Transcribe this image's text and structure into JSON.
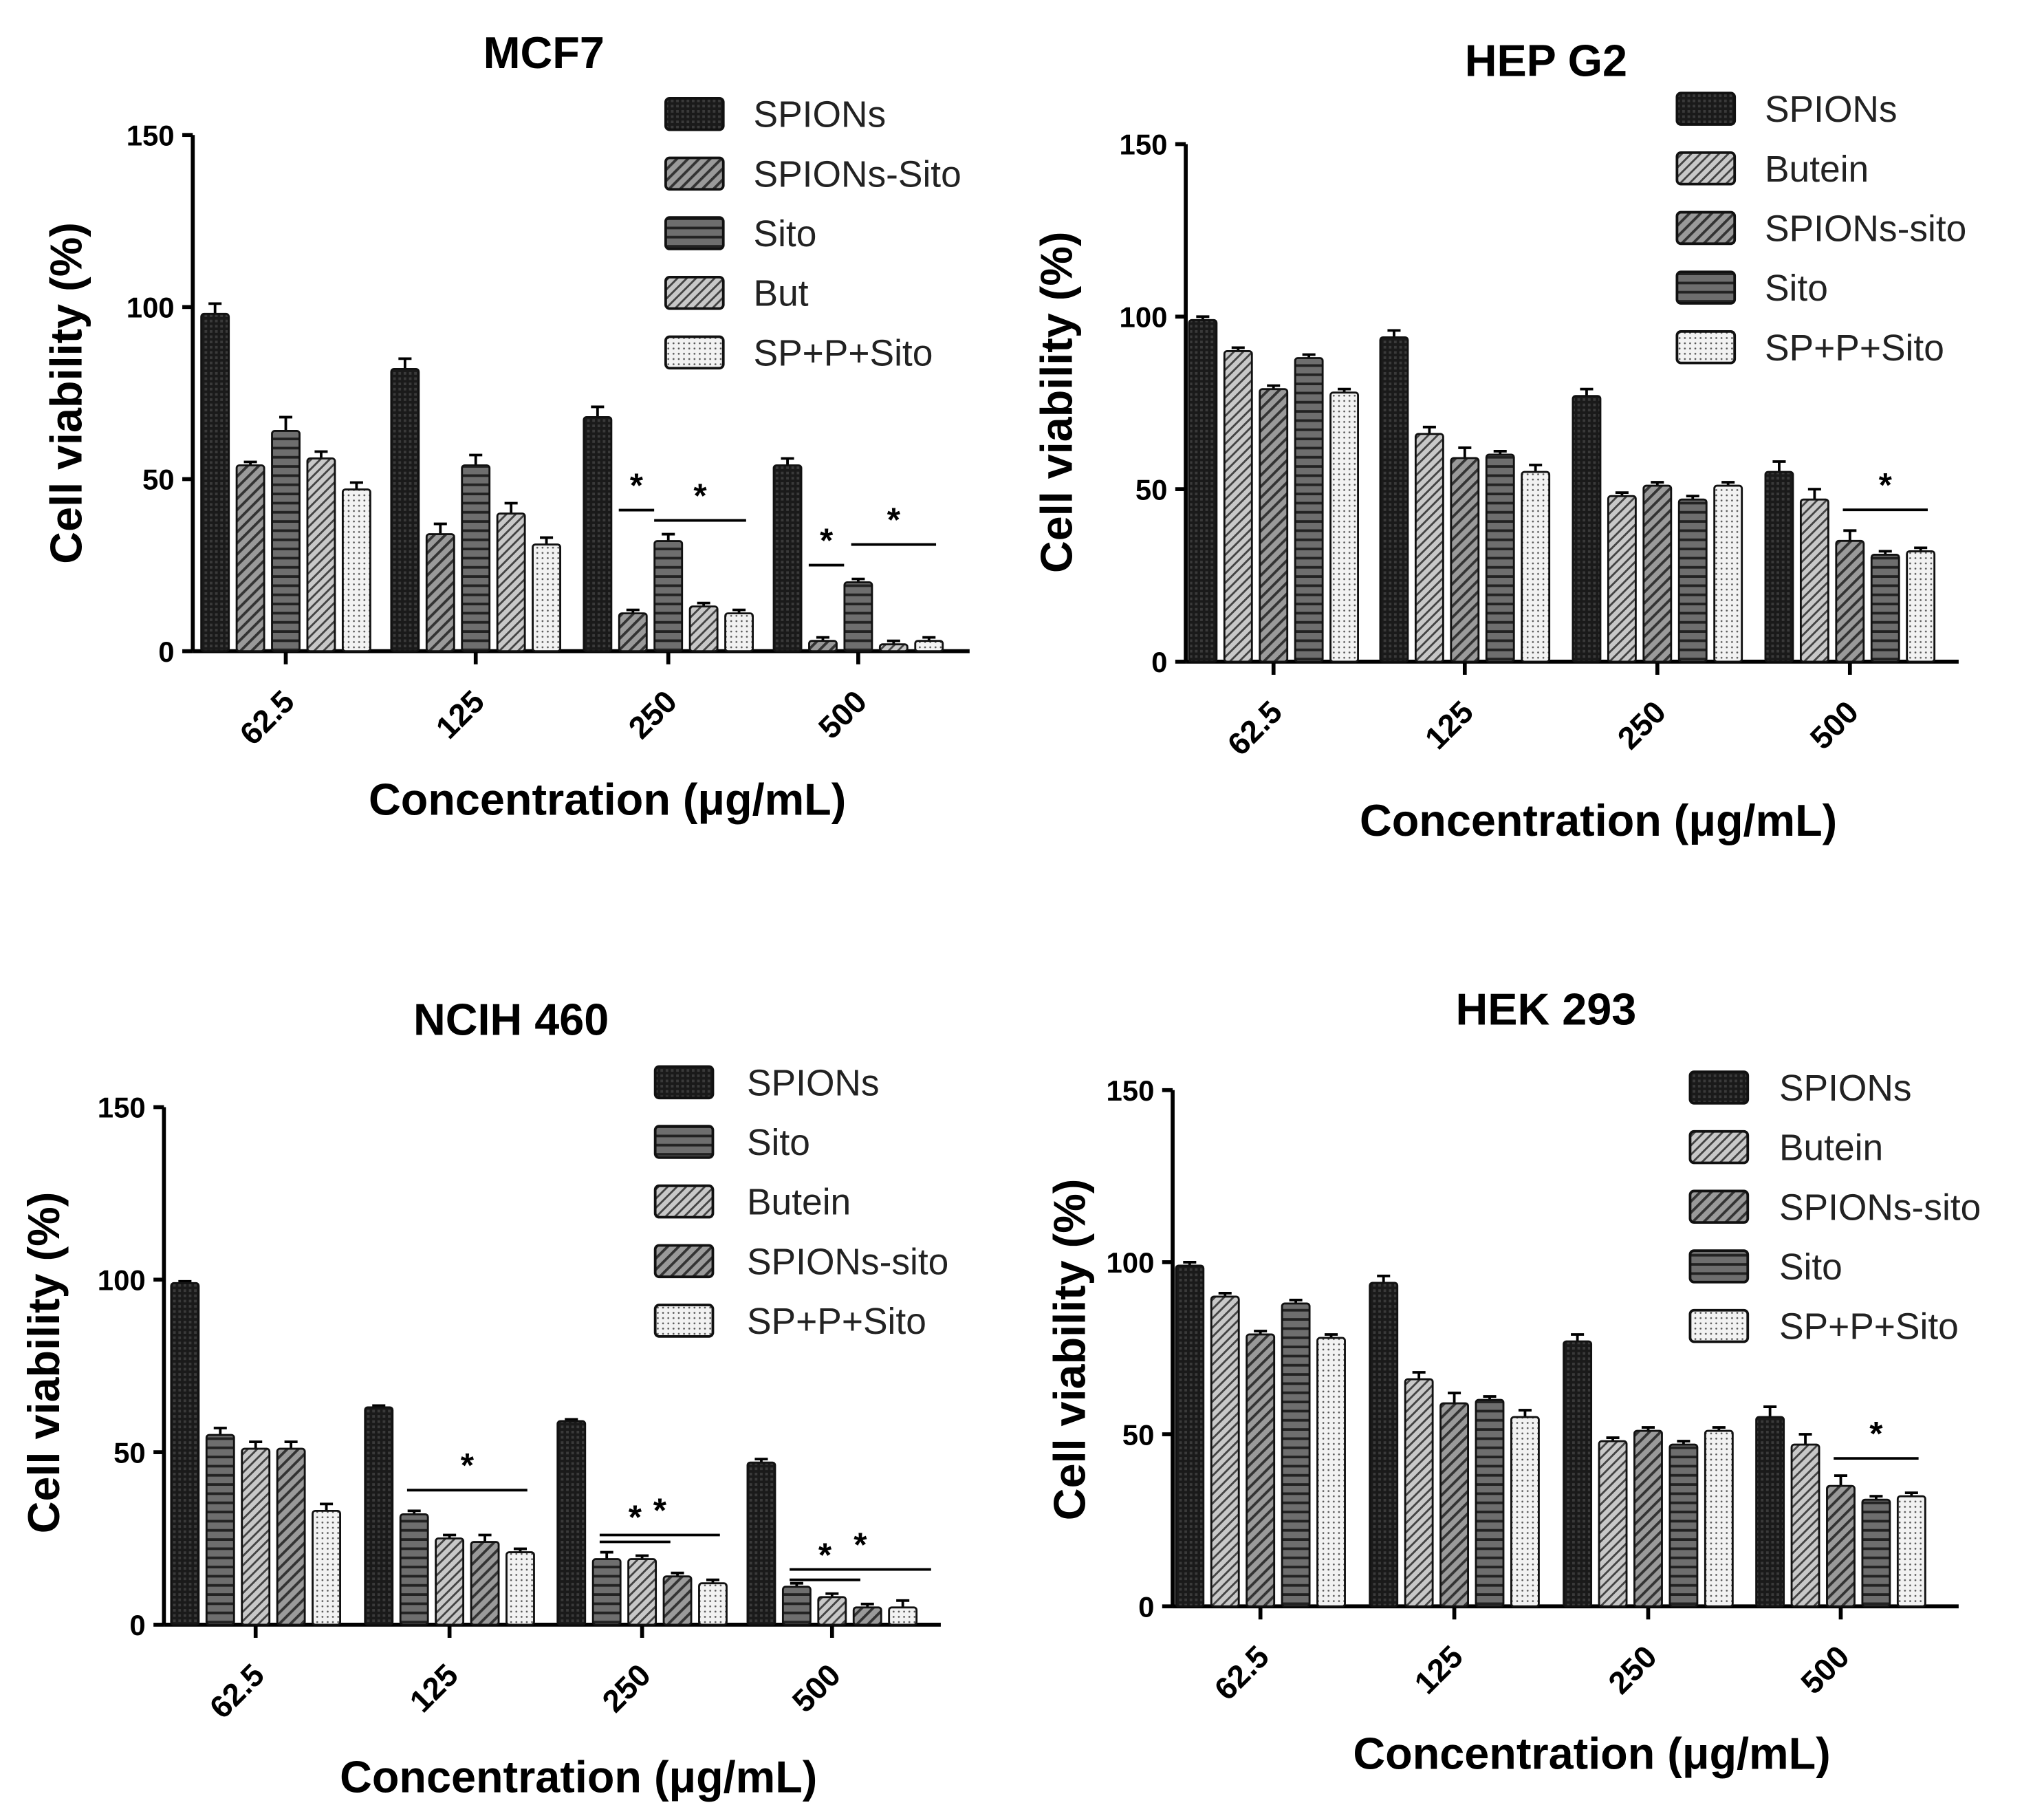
{
  "chart_data": [
    {
      "type": "bar",
      "title": "MCF7",
      "xlabel": "Concentration (μg/mL)",
      "ylabel": "Cell viability (%)",
      "ylim": [
        0,
        150
      ],
      "yticks": [
        0,
        50,
        100,
        150
      ],
      "categories": [
        "62.5",
        "125",
        "250",
        "500"
      ],
      "series": [
        {
          "name": "SPIONs",
          "pattern": "crosshatch",
          "values": [
            98,
            82,
            68,
            54
          ],
          "errors": [
            3,
            3,
            3,
            2
          ]
        },
        {
          "name": "SPIONs-Sito",
          "pattern": "diag",
          "values": [
            54,
            34,
            11,
            3
          ],
          "errors": [
            1,
            3,
            1,
            1
          ]
        },
        {
          "name": "Sito",
          "pattern": "horiz",
          "values": [
            64,
            54,
            32,
            20
          ],
          "errors": [
            4,
            3,
            2,
            1
          ]
        },
        {
          "name": "But",
          "pattern": "diaglight",
          "values": [
            56,
            40,
            13,
            2
          ],
          "errors": [
            2,
            3,
            1,
            1
          ]
        },
        {
          "name": "SP+P+Sito",
          "pattern": "dots",
          "values": [
            47,
            31,
            11,
            3
          ],
          "errors": [
            2,
            2,
            1,
            1
          ]
        }
      ],
      "legend": "top-right",
      "significance": [
        {
          "group": 2,
          "from": 0.6,
          "to": 1.6,
          "y": 41,
          "label": "*"
        },
        {
          "group": 2,
          "from": 1.6,
          "to": 4.2,
          "y": 38,
          "label": "*"
        },
        {
          "group": 3,
          "from": 0.6,
          "to": 1.6,
          "y": 25,
          "label": "*"
        },
        {
          "group": 3,
          "from": 1.8,
          "to": 4.2,
          "y": 31,
          "label": "*"
        }
      ]
    },
    {
      "type": "bar",
      "title": "HEP G2",
      "xlabel": "Concentration (μg/mL)",
      "ylabel": "Cell viability (%)",
      "ylim": [
        0,
        150
      ],
      "yticks": [
        0,
        50,
        100,
        150
      ],
      "categories": [
        "62.5",
        "125",
        "250",
        "500"
      ],
      "series": [
        {
          "name": "SPIONs",
          "pattern": "crosshatch",
          "values": [
            99,
            94,
            77,
            55
          ],
          "errors": [
            1,
            2,
            2,
            3
          ]
        },
        {
          "name": "Butein",
          "pattern": "diaglight",
          "values": [
            90,
            66,
            48,
            47
          ],
          "errors": [
            1,
            2,
            1,
            3
          ]
        },
        {
          "name": "SPIONs-sito",
          "pattern": "diag",
          "values": [
            79,
            59,
            51,
            35
          ],
          "errors": [
            1,
            3,
            1,
            3
          ]
        },
        {
          "name": "Sito",
          "pattern": "horiz",
          "values": [
            88,
            60,
            47,
            31
          ],
          "errors": [
            1,
            1,
            1,
            1
          ]
        },
        {
          "name": "SP+P+Sito",
          "pattern": "dots",
          "values": [
            78,
            55,
            51,
            32
          ],
          "errors": [
            1,
            2,
            1,
            1
          ]
        }
      ],
      "legend": "top-right",
      "significance": [
        {
          "group": 3,
          "from": 1.8,
          "to": 4.2,
          "y": 44,
          "label": "*"
        }
      ]
    },
    {
      "type": "bar",
      "title": "NCIH 460",
      "xlabel": "Concentration (μg/mL)",
      "ylabel": "Cell viability (%)",
      "ylim": [
        0,
        150
      ],
      "yticks": [
        0,
        50,
        100,
        150
      ],
      "categories": [
        "62.5",
        "125",
        "250",
        "500"
      ],
      "series": [
        {
          "name": "SPIONs",
          "pattern": "crosshatch",
          "values": [
            99,
            63,
            59,
            47
          ],
          "errors": [
            0.5,
            0.5,
            0.5,
            1
          ]
        },
        {
          "name": "Sito",
          "pattern": "horiz",
          "values": [
            55,
            32,
            19,
            11
          ],
          "errors": [
            2,
            1,
            2,
            1
          ]
        },
        {
          "name": "Butein",
          "pattern": "diaglight",
          "values": [
            51,
            25,
            19,
            8
          ],
          "errors": [
            2,
            1,
            1,
            1
          ]
        },
        {
          "name": "SPIONs-sito",
          "pattern": "diag",
          "values": [
            51,
            24,
            14,
            5
          ],
          "errors": [
            2,
            2,
            1,
            1
          ]
        },
        {
          "name": "SP+P+Sito",
          "pattern": "dots",
          "values": [
            33,
            21,
            12,
            5
          ],
          "errors": [
            2,
            1,
            1,
            2
          ]
        }
      ],
      "legend": "top-right",
      "significance": [
        {
          "group": 1,
          "from": 0.8,
          "to": 4.2,
          "y": 39,
          "label": "*"
        },
        {
          "group": 2,
          "from": 0.8,
          "to": 2.8,
          "y": 24,
          "label": "*"
        },
        {
          "group": 2,
          "from": 0.8,
          "to": 4.2,
          "y": 26,
          "label": "*"
        },
        {
          "group": 3,
          "from": 0.8,
          "to": 2.8,
          "y": 13,
          "label": "*"
        },
        {
          "group": 3,
          "from": 0.8,
          "to": 4.8,
          "y": 16,
          "label": "*"
        }
      ]
    },
    {
      "type": "bar",
      "title": "HEK 293",
      "xlabel": "Concentration (μg/mL)",
      "ylabel": "Cell viability (%)",
      "ylim": [
        0,
        150
      ],
      "yticks": [
        0,
        50,
        100,
        150
      ],
      "categories": [
        "62.5",
        "125",
        "250",
        "500"
      ],
      "series": [
        {
          "name": "SPIONs",
          "pattern": "crosshatch",
          "values": [
            99,
            94,
            77,
            55
          ],
          "errors": [
            1,
            2,
            2,
            3
          ]
        },
        {
          "name": "Butein",
          "pattern": "diaglight",
          "values": [
            90,
            66,
            48,
            47
          ],
          "errors": [
            1,
            2,
            1,
            3
          ]
        },
        {
          "name": "SPIONs-sito",
          "pattern": "diag",
          "values": [
            79,
            59,
            51,
            35
          ],
          "errors": [
            1,
            3,
            1,
            3
          ]
        },
        {
          "name": "Sito",
          "pattern": "horiz",
          "values": [
            88,
            60,
            47,
            31
          ],
          "errors": [
            1,
            1,
            1,
            1
          ]
        },
        {
          "name": "SP+P+Sito",
          "pattern": "dots",
          "values": [
            78,
            55,
            51,
            32
          ],
          "errors": [
            1,
            2,
            1,
            1
          ]
        }
      ],
      "legend": "top-right",
      "significance": [
        {
          "group": 3,
          "from": 1.8,
          "to": 4.2,
          "y": 43,
          "label": "*"
        }
      ]
    }
  ]
}
